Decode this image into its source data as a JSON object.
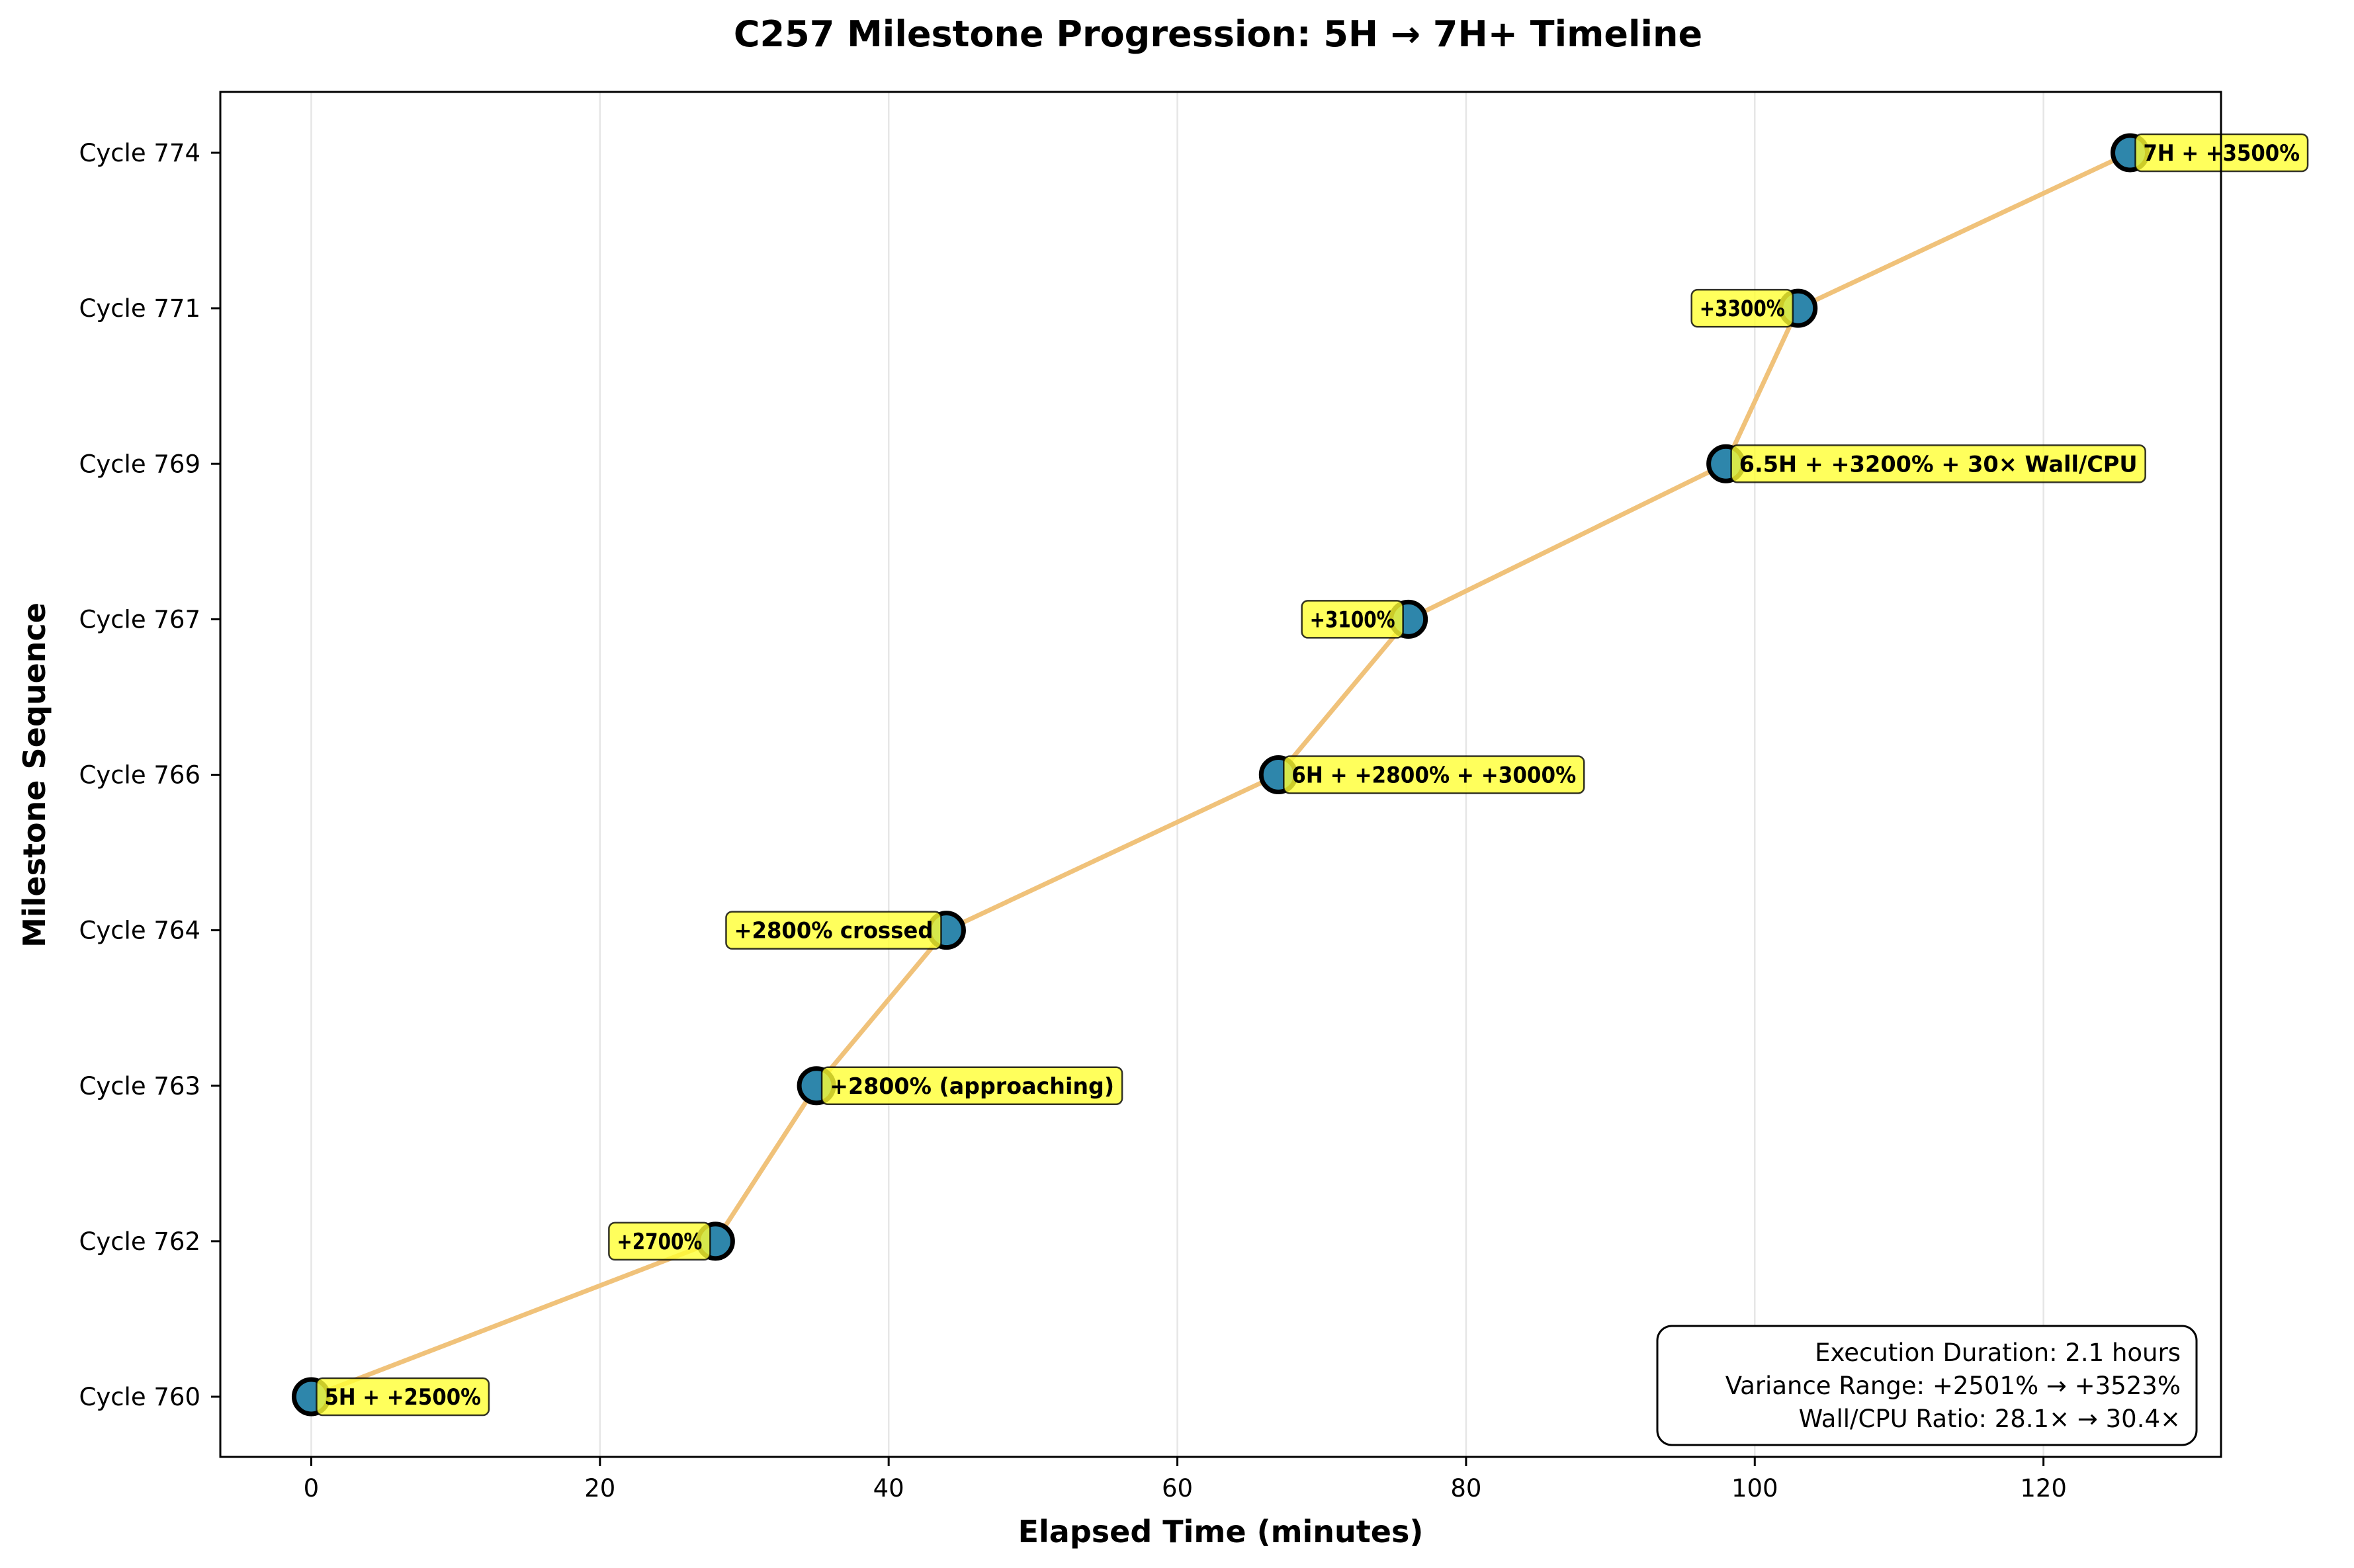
{
  "chart_data": {
    "type": "line",
    "title": "C257 Milestone Progression: 5H → 7H+ Timeline",
    "xlabel": "Elapsed Time (minutes)",
    "ylabel": "Milestone Sequence",
    "xlim": [
      -6.3,
      132.3
    ],
    "xticks": [
      0,
      20,
      40,
      60,
      80,
      100,
      120
    ],
    "grid": "x-axis only",
    "points": [
      {
        "x": 0,
        "y_label": "Cycle 760",
        "annotation": "5H + +2500%",
        "side": "right"
      },
      {
        "x": 28,
        "y_label": "Cycle 762",
        "annotation": "+2700%",
        "side": "left"
      },
      {
        "x": 35,
        "y_label": "Cycle 763",
        "annotation": "+2800% (approaching)",
        "side": "right"
      },
      {
        "x": 44,
        "y_label": "Cycle 764",
        "annotation": "+2800% crossed",
        "side": "left"
      },
      {
        "x": 67,
        "y_label": "Cycle 766",
        "annotation": "6H + +2800% + +3000%",
        "side": "right"
      },
      {
        "x": 76,
        "y_label": "Cycle 767",
        "annotation": "+3100%",
        "side": "left"
      },
      {
        "x": 98,
        "y_label": "Cycle 769",
        "annotation": "6.5H + +3200% + 30× Wall/CPU",
        "side": "right"
      },
      {
        "x": 103,
        "y_label": "Cycle 771",
        "annotation": "+3300%",
        "side": "left"
      },
      {
        "x": 126,
        "y_label": "Cycle 774",
        "annotation": "7H + +3500%",
        "side": "right"
      }
    ],
    "info_box": [
      "Execution Duration: 2.1 hours",
      "Variance Range: +2501% → +3523%",
      "Wall/CPU Ratio: 28.1× → 30.4×"
    ],
    "colors": {
      "line": "#f0c27a",
      "marker_fill": "#2e86ab",
      "marker_edge": "#000000",
      "annotation_fill": "#ffff33",
      "grid": "#e6e6e6"
    }
  }
}
